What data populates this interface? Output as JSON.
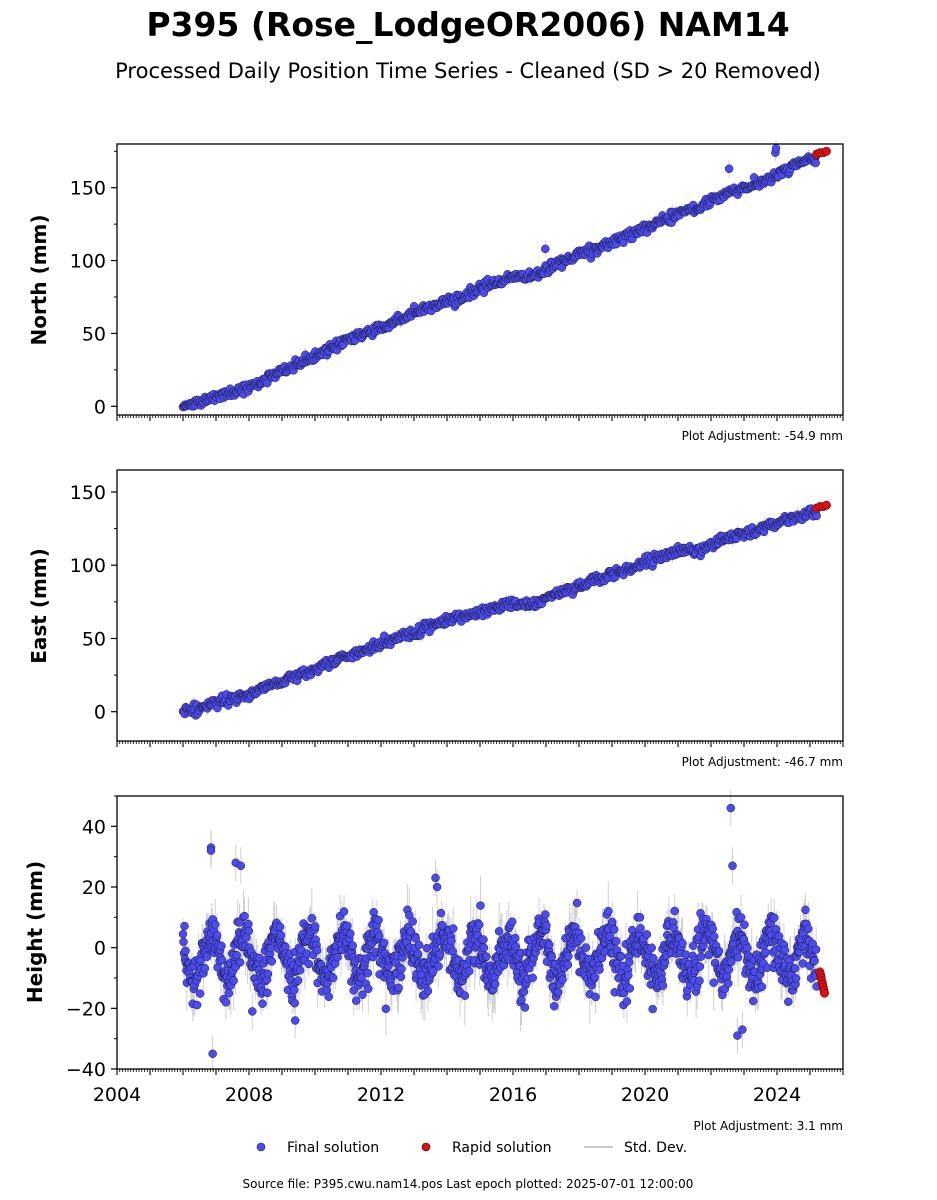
{
  "figure": {
    "title": "P395 (Rose_LodgeOR2006) NAM14",
    "subtitle": "Processed Daily Position Time Series - Cleaned (SD > 20 Removed)",
    "source_line": "Source file: P395.cwu.nam14.pos  Last epoch plotted: 2025-07-01 12:00:00"
  },
  "legend": {
    "final": "Final solution",
    "rapid": "Rapid solution",
    "std": "Std. Dev."
  },
  "colors": {
    "final": "#4b4bf0",
    "rapid": "#e01010",
    "std": "#aaaaaa",
    "edge": "#1a1a3a"
  },
  "chart_data": [
    {
      "type": "scatter",
      "panel": "north",
      "ylabel": "North (mm)",
      "adjustment": "Plot Adjustment: -54.9 mm",
      "ylim": [
        -6,
        180
      ],
      "yticks": [
        0,
        50,
        100,
        150
      ],
      "ytick_labels": [
        "0",
        "50",
        "100",
        "150"
      ],
      "xlim": [
        2004.0,
        2026.0
      ],
      "series": [
        {
          "name": "Final solution",
          "x": [
            2006.0,
            2006.5,
            2007.0,
            2007.5,
            2008.0,
            2008.5,
            2009.0,
            2009.5,
            2010.0,
            2010.5,
            2011.0,
            2011.5,
            2012.0,
            2012.5,
            2013.0,
            2013.5,
            2014.0,
            2014.5,
            2015.0,
            2015.5,
            2016.0,
            2016.5,
            2017.0,
            2017.5,
            2018.0,
            2018.5,
            2019.0,
            2019.5,
            2020.0,
            2020.5,
            2021.0,
            2021.5,
            2022.0,
            2022.5,
            2023.0,
            2023.5,
            2024.0,
            2024.5,
            2025.0
          ],
          "y": [
            0,
            3,
            7,
            10,
            13,
            19,
            24,
            29,
            34,
            40,
            46,
            50,
            54,
            59,
            64,
            68,
            72,
            76,
            81,
            85,
            89,
            88,
            94,
            100,
            104,
            108,
            113,
            117,
            122,
            127,
            132,
            136,
            141,
            146,
            150,
            153,
            158,
            165,
            170
          ]
        },
        {
          "name": "Rapid solution",
          "x": [
            2025.2,
            2025.3,
            2025.4,
            2025.5
          ],
          "y": [
            173,
            174,
            174,
            175
          ]
        }
      ],
      "outliers": {
        "x": [
          2016.98,
          2022.55,
          2023.95,
          2023.97
        ],
        "y": [
          108,
          163,
          174,
          177
        ]
      }
    },
    {
      "type": "scatter",
      "panel": "east",
      "ylabel": "East (mm)",
      "adjustment": "Plot Adjustment: -46.7 mm",
      "ylim": [
        -20,
        165
      ],
      "yticks": [
        0,
        50,
        100,
        150
      ],
      "ytick_labels": [
        "0",
        "50",
        "100",
        "150"
      ],
      "xlim": [
        2004.0,
        2026.0
      ],
      "series": [
        {
          "name": "Final solution",
          "x": [
            2006.0,
            2006.5,
            2007.0,
            2007.5,
            2008.0,
            2008.5,
            2009.0,
            2009.5,
            2010.0,
            2010.5,
            2011.0,
            2011.5,
            2012.0,
            2012.5,
            2013.0,
            2013.5,
            2014.0,
            2014.5,
            2015.0,
            2015.5,
            2016.0,
            2016.5,
            2017.0,
            2017.5,
            2018.0,
            2018.5,
            2019.0,
            2019.5,
            2020.0,
            2020.5,
            2021.0,
            2021.5,
            2022.0,
            2022.5,
            2023.0,
            2023.5,
            2024.0,
            2024.5,
            2025.0
          ],
          "y": [
            0,
            3,
            6,
            9,
            12,
            17,
            21,
            25,
            29,
            34,
            38,
            42,
            46,
            50,
            54,
            58,
            62,
            65,
            68,
            71,
            74,
            73,
            77,
            82,
            86,
            90,
            94,
            98,
            102,
            106,
            110,
            109,
            114,
            118,
            121,
            125,
            128,
            132,
            136
          ]
        },
        {
          "name": "Rapid solution",
          "x": [
            2025.2,
            2025.3,
            2025.4,
            2025.5
          ],
          "y": [
            139,
            140,
            140,
            141
          ]
        }
      ]
    },
    {
      "type": "scatter",
      "panel": "height",
      "ylabel": "Height (mm)",
      "adjustment": "Plot Adjustment: 3.1 mm",
      "ylim": [
        -40,
        50
      ],
      "yticks": [
        -40,
        -20,
        0,
        20,
        40
      ],
      "ytick_labels": [
        "−40",
        "−20",
        "0",
        "20",
        "40"
      ],
      "xlim": [
        2004.0,
        2026.0
      ],
      "xticks": [
        2004,
        2008,
        2012,
        2016,
        2020,
        2024
      ],
      "xtick_labels": [
        "2004",
        "2008",
        "2012",
        "2016",
        "2020",
        "2024"
      ],
      "seasonal": {
        "amplitude": 7,
        "offset": -3,
        "peak_phase": 0.85,
        "noise_sd": 4
      },
      "series": [
        {
          "name": "Final solution",
          "x": [
            2006.85,
            2006.85,
            2007.6,
            2007.75,
            2013.65,
            2013.7,
            2022.6,
            2022.65,
            2022.8,
            2022.95,
            2006.9,
            2008.1,
            2009.4
          ],
          "y": [
            33,
            32,
            28,
            27,
            23,
            20,
            46,
            27,
            -29,
            -27,
            -35,
            -21,
            -24
          ]
        },
        {
          "name": "Rapid solution",
          "x": [
            2025.3,
            2025.32,
            2025.34,
            2025.36,
            2025.38,
            2025.4,
            2025.42,
            2025.44
          ],
          "y": [
            -8,
            -9,
            -10,
            -11,
            -12,
            -13,
            -14,
            -15
          ]
        }
      ]
    }
  ]
}
